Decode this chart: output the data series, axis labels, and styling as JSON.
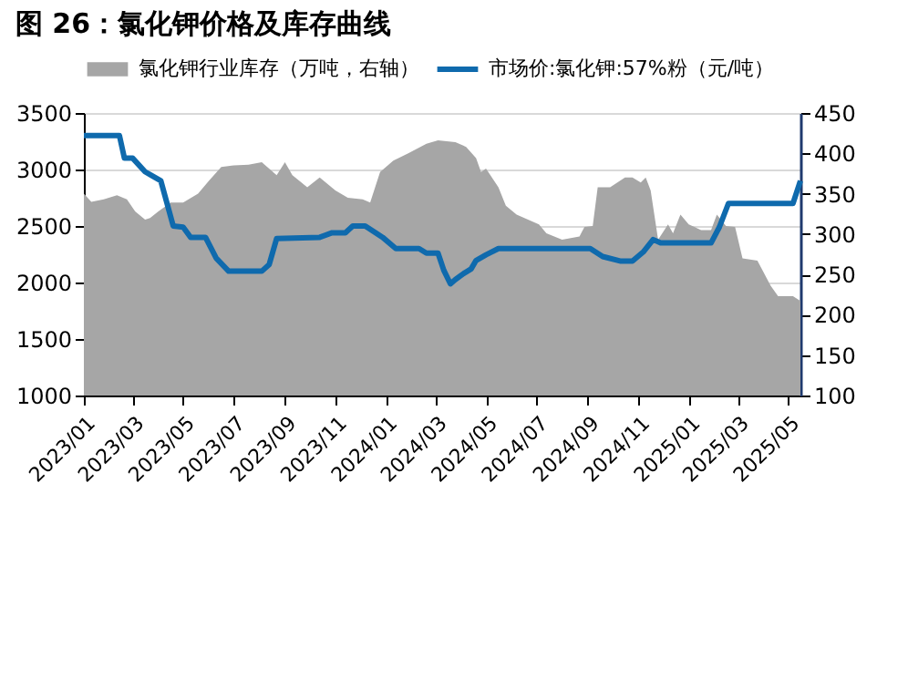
{
  "chart_data": {
    "type": "line",
    "title": "图 26：氯化钾价格及库存曲线",
    "xlim": [
      "2023-01-01",
      "2025-05-16"
    ],
    "xticks": [
      {
        "value": "2023-01-01",
        "label": "2023/01"
      },
      {
        "value": "2023-03-01",
        "label": "2023/03"
      },
      {
        "value": "2023-05-01",
        "label": "2023/05"
      },
      {
        "value": "2023-07-01",
        "label": "2023/07"
      },
      {
        "value": "2023-09-01",
        "label": "2023/09"
      },
      {
        "value": "2023-11-01",
        "label": "2023/11"
      },
      {
        "value": "2024-01-01",
        "label": "2024/01"
      },
      {
        "value": "2024-03-01",
        "label": "2024/03"
      },
      {
        "value": "2024-05-01",
        "label": "2024/05"
      },
      {
        "value": "2024-07-01",
        "label": "2024/07"
      },
      {
        "value": "2024-09-01",
        "label": "2024/09"
      },
      {
        "value": "2024-11-01",
        "label": "2024/11"
      },
      {
        "value": "2025-01-01",
        "label": "2025/01"
      },
      {
        "value": "2025-03-01",
        "label": "2025/03"
      },
      {
        "value": "2025-05-01",
        "label": "2025/05"
      }
    ],
    "ylim": [
      1000,
      3500
    ],
    "yticks": [
      1000,
      1500,
      2000,
      2500,
      3000,
      3500
    ],
    "y2lim": [
      100,
      450
    ],
    "y2ticks": [
      100,
      150,
      200,
      250,
      300,
      350,
      400,
      450
    ],
    "grid": "y",
    "legend": "top",
    "marker": "none",
    "line_style": "solid",
    "series": [
      {
        "name": "氯化钾行业库存（万吨，右轴）",
        "type": "area",
        "axis": "y2",
        "color": "#a6a6a6",
        "x": [
          "2023-01-01",
          "2023-01-10",
          "2023-01-25",
          "2023-02-10",
          "2023-02-22",
          "2023-03-04",
          "2023-03-16",
          "2023-03-22",
          "2023-04-01",
          "2023-04-16",
          "2023-05-01",
          "2023-05-19",
          "2023-06-01",
          "2023-06-16",
          "2023-07-01",
          "2023-07-19",
          "2023-08-04",
          "2023-08-22",
          "2023-09-01",
          "2023-09-10",
          "2023-09-28",
          "2023-10-13",
          "2023-11-01",
          "2023-11-16",
          "2023-12-04",
          "2023-12-13",
          "2023-12-25",
          "2024-01-10",
          "2024-01-28",
          "2024-02-19",
          "2024-03-04",
          "2024-03-25",
          "2024-04-07",
          "2024-04-19",
          "2024-04-25",
          "2024-05-01",
          "2024-05-16",
          "2024-05-25",
          "2024-06-07",
          "2024-07-04",
          "2024-07-13",
          "2024-08-01",
          "2024-08-22",
          "2024-08-28",
          "2024-09-07",
          "2024-09-13",
          "2024-09-28",
          "2024-10-16",
          "2024-10-25",
          "2024-11-04",
          "2024-11-10",
          "2024-11-16",
          "2024-11-25",
          "2024-12-07",
          "2024-12-13",
          "2024-12-22",
          "2025-01-01",
          "2025-01-16",
          "2025-01-28",
          "2025-02-04",
          "2025-02-15",
          "2025-02-26",
          "2025-03-07",
          "2025-03-25",
          "2025-04-10",
          "2025-04-19",
          "2025-05-07",
          "2025-05-16"
        ],
        "values": [
          350,
          340,
          343,
          348,
          343,
          328,
          318,
          320,
          328,
          339,
          339,
          350,
          366,
          383,
          385,
          386,
          389,
          373,
          389,
          373,
          358,
          370,
          354,
          345,
          343,
          339,
          377,
          391,
          400,
          412,
          416,
          414,
          408,
          394,
          377,
          381,
          358,
          335,
          324,
          312,
          301,
          293,
          297,
          309,
          310,
          358,
          358,
          370,
          370,
          364,
          370,
          354,
          293,
          312,
          301,
          324,
          312,
          305,
          305,
          324,
          310,
          309,
          270,
          267,
          236,
          223,
          223,
          217
        ]
      },
      {
        "name": "市场价:氯化钾:57%粉（元/吨）",
        "type": "line",
        "color": "#0f6aad",
        "x": [
          "2023-01-01",
          "2023-02-13",
          "2023-02-19",
          "2023-03-01",
          "2023-03-16",
          "2023-03-23",
          "2023-04-04",
          "2023-04-19",
          "2023-05-01",
          "2023-05-10",
          "2023-05-28",
          "2023-06-10",
          "2023-06-25",
          "2023-08-04",
          "2023-08-13",
          "2023-08-22",
          "2023-10-13",
          "2023-10-28",
          "2023-11-13",
          "2023-11-22",
          "2023-12-07",
          "2023-12-28",
          "2024-01-13",
          "2024-02-10",
          "2024-02-19",
          "2024-03-04",
          "2024-03-11",
          "2024-03-19",
          "2024-03-25",
          "2024-04-04",
          "2024-04-13",
          "2024-04-19",
          "2024-05-01",
          "2024-05-16",
          "2024-09-04",
          "2024-09-19",
          "2024-10-10",
          "2024-10-25",
          "2024-11-07",
          "2024-11-19",
          "2024-11-28",
          "2025-01-28",
          "2025-02-07",
          "2025-02-18",
          "2025-02-26",
          "2025-05-07",
          "2025-05-16"
        ],
        "values": [
          3300,
          3300,
          3100,
          3100,
          2980,
          2950,
          2900,
          2500,
          2490,
          2400,
          2400,
          2215,
          2100,
          2100,
          2160,
          2390,
          2400,
          2440,
          2440,
          2500,
          2500,
          2400,
          2300,
          2300,
          2260,
          2260,
          2108,
          1988,
          2026,
          2080,
          2120,
          2195,
          2245,
          2300,
          2300,
          2230,
          2190,
          2190,
          2270,
          2380,
          2350,
          2350,
          2490,
          2700,
          2700,
          2700,
          2900
        ]
      }
    ]
  }
}
